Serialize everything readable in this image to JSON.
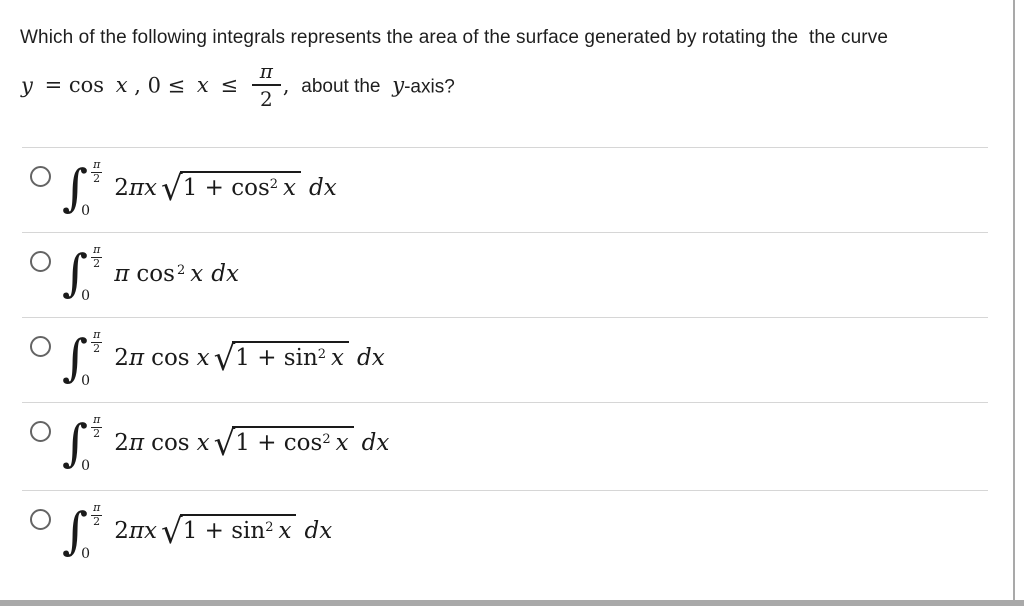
{
  "page": {
    "background": "#ffffff",
    "text_color": "#1e1e1e",
    "divider_color": "#d6d6d6",
    "frame_color": "#a9a9a9"
  },
  "math": {
    "integral": "∫",
    "sqrt": "√"
  },
  "question": {
    "line1": "Which of the following integrals represents the area of the surface generated by rotating the  the curve",
    "line2": {
      "y_var": "y",
      "eq_cos": "= cos",
      "x1": "x",
      "interval_start": ", 0 ≤",
      "x2": "x",
      "leq": "≤",
      "frac_num": "π",
      "frac_den": "2",
      "comma": ",",
      "about": "about the",
      "y2": "y",
      "axis_suffix": "-axis?"
    }
  },
  "options": [
    {
      "selected": false,
      "lower": "0",
      "upper_num": "π",
      "upper_den": "2",
      "coeff": "2",
      "coeff_it": "πx",
      "rad_pre": "1 + cos",
      "rad_sup": "2",
      "rad_var": "x",
      "dx": "dx"
    },
    {
      "selected": false,
      "lower": "0",
      "upper_num": "π",
      "upper_den": "2",
      "coeff_it": "π",
      "fn": "cos",
      "fn_sup": "2",
      "var": "x",
      "dx": "dx"
    },
    {
      "selected": false,
      "lower": "0",
      "upper_num": "π",
      "upper_den": "2",
      "coeff": "2",
      "coeff_it": "π",
      "fn": "cos",
      "var": "x",
      "rad_pre": "1 + sin",
      "rad_sup": "2",
      "rad_var": "x",
      "dx": "dx"
    },
    {
      "selected": false,
      "lower": "0",
      "upper_num": "π",
      "upper_den": "2",
      "coeff": "2",
      "coeff_it": "π",
      "fn": "cos",
      "var": "x",
      "rad_pre": "1 + cos",
      "rad_sup": "2",
      "rad_var": "x",
      "dx": "dx"
    },
    {
      "selected": false,
      "lower": "0",
      "upper_num": "π",
      "upper_den": "2",
      "coeff": "2",
      "coeff_it": "πx",
      "rad_pre": "1 + sin",
      "rad_sup": "2",
      "rad_var": "x",
      "dx": "dx"
    }
  ]
}
